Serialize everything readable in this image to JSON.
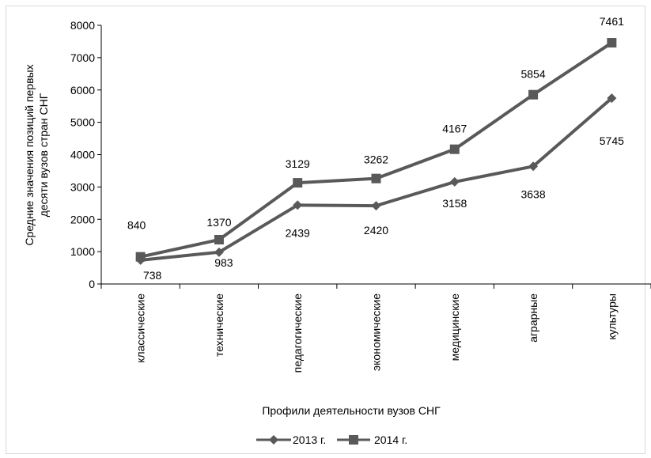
{
  "chart_data": {
    "type": "line",
    "title": "",
    "xlabel": "Профили деятельности вузов СНГ",
    "ylabel_lines": [
      "Средние значения позиций первых",
      "десяти вузов  стран СНГ"
    ],
    "ylim": [
      0,
      8000
    ],
    "yticks": [
      "0",
      "1000",
      "2000",
      "3000",
      "4000",
      "5000",
      "6000",
      "7000",
      "8000"
    ],
    "categories": [
      "классические",
      "технические",
      "педагогические",
      "экономические",
      "медицинские",
      "аграрные",
      "культуры"
    ],
    "series": [
      {
        "name": "2013 г.",
        "values": [
          738,
          983,
          2439,
          2420,
          3158,
          3638,
          5745
        ],
        "labels": [
          "738",
          "983",
          "2439",
          "2420",
          "3158",
          "3638",
          "5745"
        ],
        "color": "#595959",
        "marker": "diamond"
      },
      {
        "name": "2014 г.",
        "values": [
          840,
          1370,
          3129,
          3262,
          4167,
          5854,
          7461
        ],
        "labels": [
          "840",
          "1370",
          "3129",
          "3262",
          "4167",
          "5854",
          "7461"
        ],
        "color": "#595959",
        "marker": "square"
      }
    ],
    "grid": false,
    "legend_position": "bottom"
  }
}
